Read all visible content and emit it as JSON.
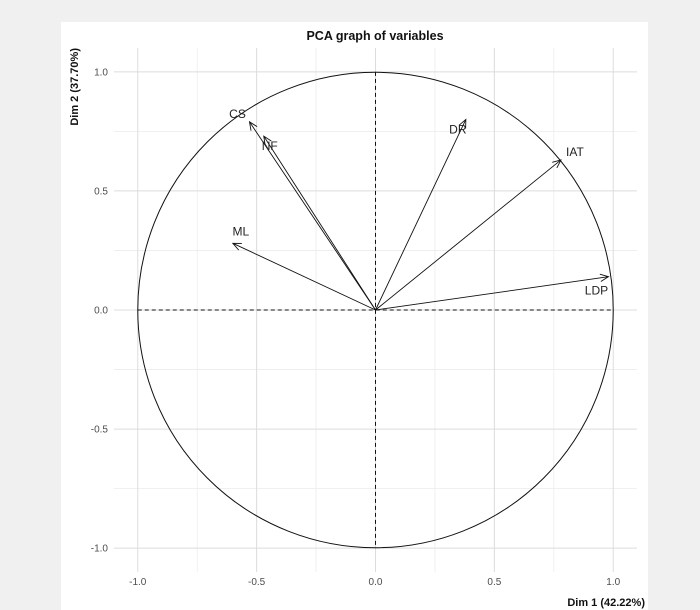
{
  "chart_data": {
    "type": "scatter",
    "subtype": "pca-correlation-circle",
    "title": "PCA graph of variables",
    "xlabel": "Dim 1 (42.22%)",
    "ylabel": "Dim 2 (37.70%)",
    "xlim": [
      -1.1,
      1.1
    ],
    "ylim": [
      -1.1,
      1.1
    ],
    "xticks": [
      -1.0,
      -0.5,
      0.0,
      0.5,
      1.0
    ],
    "yticks": [
      -1.0,
      -0.5,
      0.0,
      0.5,
      1.0
    ],
    "xtick_labels": [
      "-1.0",
      "-0.5",
      "0.0",
      "0.5",
      "1.0"
    ],
    "ytick_labels": [
      "-1.0",
      "-0.5",
      "0.0",
      "0.5",
      "1.0"
    ],
    "grid": true,
    "unit_circle": true,
    "variables": [
      {
        "name": "CS",
        "x": -0.53,
        "y": 0.79
      },
      {
        "name": "NF",
        "x": -0.47,
        "y": 0.73
      },
      {
        "name": "ML",
        "x": -0.6,
        "y": 0.28
      },
      {
        "name": "DR",
        "x": 0.38,
        "y": 0.8
      },
      {
        "name": "IAT",
        "x": 0.78,
        "y": 0.63
      },
      {
        "name": "LDP",
        "x": 0.98,
        "y": 0.14
      }
    ]
  }
}
